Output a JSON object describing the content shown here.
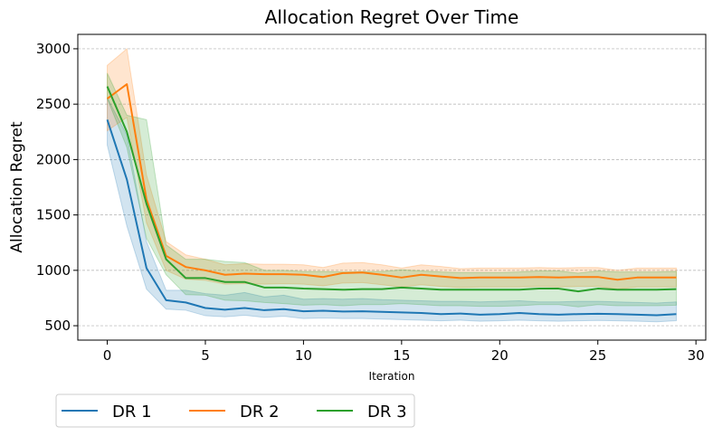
{
  "chart_data": {
    "type": "line",
    "title": "Allocation Regret Over Time",
    "xlabel": "Iteration",
    "ylabel": "Allocation Regret",
    "xlim": [
      -1.5,
      30.5
    ],
    "ylim": [
      370,
      3130
    ],
    "xticks": [
      0,
      5,
      10,
      15,
      20,
      25,
      30
    ],
    "yticks": [
      500,
      1000,
      1500,
      2000,
      2500,
      3000
    ],
    "grid": "horizontal-dashed",
    "legend_position": "below-left",
    "x": [
      0,
      1,
      2,
      3,
      4,
      5,
      6,
      7,
      8,
      9,
      10,
      11,
      12,
      13,
      14,
      15,
      16,
      17,
      18,
      19,
      20,
      21,
      22,
      23,
      24,
      25,
      26,
      27,
      28,
      29
    ],
    "series": [
      {
        "name": "DR 1",
        "color": "#1f77b4",
        "values": [
          2360,
          1820,
          1020,
          730,
          710,
          660,
          645,
          660,
          640,
          650,
          630,
          635,
          628,
          630,
          625,
          620,
          615,
          605,
          610,
          600,
          605,
          615,
          605,
          600,
          605,
          608,
          605,
          600,
          595,
          605
        ],
        "lower": [
          2130,
          1400,
          830,
          650,
          640,
          590,
          580,
          595,
          575,
          585,
          565,
          570,
          565,
          565,
          560,
          555,
          550,
          545,
          550,
          540,
          545,
          550,
          545,
          540,
          545,
          548,
          545,
          540,
          535,
          545
        ],
        "upper": [
          2560,
          2220,
          1260,
          820,
          820,
          790,
          775,
          800,
          760,
          775,
          740,
          745,
          740,
          745,
          735,
          730,
          725,
          720,
          720,
          715,
          720,
          725,
          715,
          715,
          720,
          720,
          715,
          710,
          705,
          715
        ]
      },
      {
        "name": "DR 2",
        "color": "#ff7f0e",
        "values": [
          2550,
          2680,
          1640,
          1130,
          1030,
          1000,
          960,
          970,
          965,
          965,
          960,
          940,
          975,
          980,
          960,
          935,
          960,
          945,
          930,
          935,
          935,
          935,
          940,
          935,
          940,
          940,
          915,
          935,
          935,
          935
        ],
        "lower": [
          2260,
          2380,
          1430,
          1000,
          920,
          910,
          875,
          880,
          875,
          880,
          875,
          860,
          885,
          890,
          870,
          850,
          870,
          855,
          845,
          850,
          850,
          850,
          855,
          850,
          855,
          855,
          830,
          850,
          850,
          850
        ],
        "upper": [
          2850,
          3000,
          1860,
          1260,
          1140,
          1100,
          1050,
          1060,
          1055,
          1055,
          1050,
          1025,
          1065,
          1070,
          1050,
          1020,
          1050,
          1035,
          1015,
          1020,
          1020,
          1020,
          1025,
          1020,
          1025,
          1025,
          1000,
          1020,
          1020,
          1020
        ]
      },
      {
        "name": "DR 3",
        "color": "#2ca02c",
        "values": [
          2660,
          2250,
          1600,
          1100,
          930,
          930,
          895,
          895,
          845,
          845,
          835,
          830,
          825,
          830,
          830,
          845,
          835,
          825,
          825,
          825,
          825,
          825,
          835,
          835,
          810,
          835,
          825,
          825,
          825,
          830
        ],
        "lower": [
          2550,
          2110,
          1290,
          960,
          780,
          775,
          730,
          725,
          710,
          700,
          685,
          690,
          680,
          690,
          690,
          700,
          690,
          680,
          680,
          675,
          675,
          680,
          690,
          690,
          670,
          690,
          680,
          680,
          680,
          685
        ],
        "upper": [
          2780,
          2400,
          2360,
          1230,
          1100,
          1100,
          1080,
          1070,
          1000,
          1000,
          990,
          990,
          985,
          990,
          990,
          1005,
          995,
          985,
          980,
          980,
          980,
          985,
          995,
          995,
          975,
          995,
          985,
          985,
          985,
          990
        ]
      }
    ]
  }
}
